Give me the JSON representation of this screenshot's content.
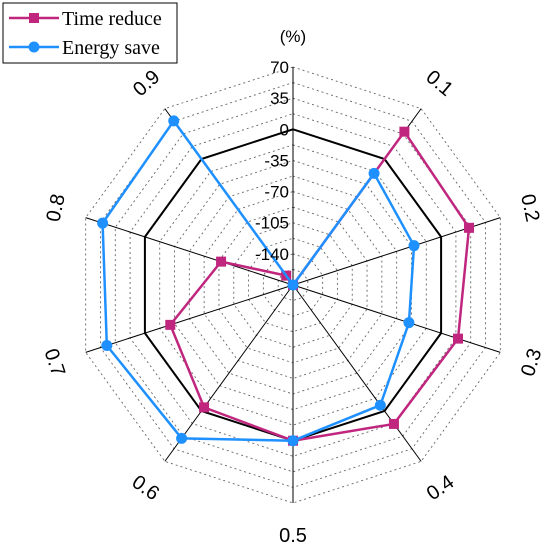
{
  "chart_data": {
    "type": "radar",
    "unit_label": "(%)",
    "categories": [
      "0.1",
      "0.2",
      "0.3",
      "0.4",
      "0.5",
      "0.6",
      "0.7",
      "0.8",
      "0.9"
    ],
    "radial_ticks": [
      "70",
      "35",
      "0",
      "-35",
      "-70",
      "-105",
      "-140"
    ],
    "rlim": [
      -175,
      70
    ],
    "series": [
      {
        "name": "Time reduce",
        "color": "#c0267e",
        "marker": "square",
        "values": [
          38,
          33,
          20,
          18,
          0,
          -5,
          -30,
          -90,
          -162
        ]
      },
      {
        "name": "Energy save",
        "color": "#1e90ff",
        "marker": "circle",
        "values": [
          -20,
          -32,
          -38,
          -8,
          0,
          38,
          45,
          50,
          53
        ]
      }
    ],
    "grid": "dotted",
    "legend_position": "top-left"
  }
}
